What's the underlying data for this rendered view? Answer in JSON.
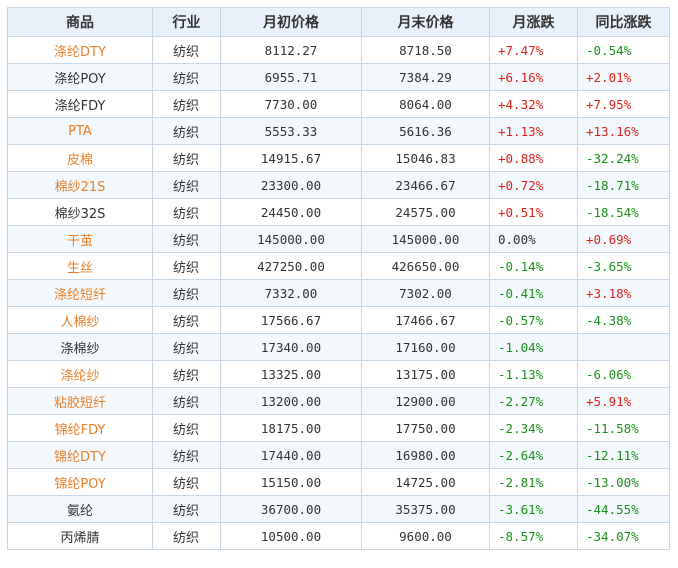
{
  "headers": [
    "商品",
    "行业",
    "月初价格",
    "月末价格",
    "月涨跌",
    "同比涨跌"
  ],
  "colors": {
    "link": "#e87f2a",
    "up": "#e0201b",
    "down": "#1d8f1d"
  },
  "rows": [
    {
      "name": "涤纶DTY",
      "link": true,
      "industry": "纺织",
      "start": "8112.27",
      "end": "8718.50",
      "mom": "+7.47%",
      "mom_dir": "up",
      "yoy": "-0.54%",
      "yoy_dir": "down"
    },
    {
      "name": "涤纶POY",
      "link": false,
      "industry": "纺织",
      "start": "6955.71",
      "end": "7384.29",
      "mom": "+6.16%",
      "mom_dir": "up",
      "yoy": "+2.01%",
      "yoy_dir": "up"
    },
    {
      "name": "涤纶FDY",
      "link": false,
      "industry": "纺织",
      "start": "7730.00",
      "end": "8064.00",
      "mom": "+4.32%",
      "mom_dir": "up",
      "yoy": "+7.95%",
      "yoy_dir": "up"
    },
    {
      "name": "PTA",
      "link": true,
      "industry": "纺织",
      "start": "5553.33",
      "end": "5616.36",
      "mom": "+1.13%",
      "mom_dir": "up",
      "yoy": "+13.16%",
      "yoy_dir": "up"
    },
    {
      "name": "皮棉",
      "link": true,
      "industry": "纺织",
      "start": "14915.67",
      "end": "15046.83",
      "mom": "+0.88%",
      "mom_dir": "up",
      "yoy": "-32.24%",
      "yoy_dir": "down"
    },
    {
      "name": "棉纱21S",
      "link": true,
      "industry": "纺织",
      "start": "23300.00",
      "end": "23466.67",
      "mom": "+0.72%",
      "mom_dir": "up",
      "yoy": "-18.71%",
      "yoy_dir": "down"
    },
    {
      "name": "棉纱32S",
      "link": false,
      "industry": "纺织",
      "start": "24450.00",
      "end": "24575.00",
      "mom": "+0.51%",
      "mom_dir": "up",
      "yoy": "-18.54%",
      "yoy_dir": "down"
    },
    {
      "name": "干茧",
      "link": true,
      "industry": "纺织",
      "start": "145000.00",
      "end": "145000.00",
      "mom": "0.00%",
      "mom_dir": "flat",
      "yoy": "+0.69%",
      "yoy_dir": "up"
    },
    {
      "name": "生丝",
      "link": true,
      "industry": "纺织",
      "start": "427250.00",
      "end": "426650.00",
      "mom": "-0.14%",
      "mom_dir": "down",
      "yoy": "-3.65%",
      "yoy_dir": "down"
    },
    {
      "name": "涤纶短纤",
      "link": true,
      "industry": "纺织",
      "start": "7332.00",
      "end": "7302.00",
      "mom": "-0.41%",
      "mom_dir": "down",
      "yoy": "+3.18%",
      "yoy_dir": "up"
    },
    {
      "name": "人棉纱",
      "link": true,
      "industry": "纺织",
      "start": "17566.67",
      "end": "17466.67",
      "mom": "-0.57%",
      "mom_dir": "down",
      "yoy": "-4.38%",
      "yoy_dir": "down"
    },
    {
      "name": "涤棉纱",
      "link": false,
      "industry": "纺织",
      "start": "17340.00",
      "end": "17160.00",
      "mom": "-1.04%",
      "mom_dir": "down",
      "yoy": "",
      "yoy_dir": "flat"
    },
    {
      "name": "涤纶纱",
      "link": true,
      "industry": "纺织",
      "start": "13325.00",
      "end": "13175.00",
      "mom": "-1.13%",
      "mom_dir": "down",
      "yoy": "-6.06%",
      "yoy_dir": "down"
    },
    {
      "name": "粘胶短纤",
      "link": true,
      "industry": "纺织",
      "start": "13200.00",
      "end": "12900.00",
      "mom": "-2.27%",
      "mom_dir": "down",
      "yoy": "+5.91%",
      "yoy_dir": "up"
    },
    {
      "name": "锦纶FDY",
      "link": true,
      "industry": "纺织",
      "start": "18175.00",
      "end": "17750.00",
      "mom": "-2.34%",
      "mom_dir": "down",
      "yoy": "-11.58%",
      "yoy_dir": "down"
    },
    {
      "name": "锦纶DTY",
      "link": true,
      "industry": "纺织",
      "start": "17440.00",
      "end": "16980.00",
      "mom": "-2.64%",
      "mom_dir": "down",
      "yoy": "-12.11%",
      "yoy_dir": "down"
    },
    {
      "name": "锦纶POY",
      "link": true,
      "industry": "纺织",
      "start": "15150.00",
      "end": "14725.00",
      "mom": "-2.81%",
      "mom_dir": "down",
      "yoy": "-13.00%",
      "yoy_dir": "down"
    },
    {
      "name": "氨纶",
      "link": false,
      "industry": "纺织",
      "start": "36700.00",
      "end": "35375.00",
      "mom": "-3.61%",
      "mom_dir": "down",
      "yoy": "-44.55%",
      "yoy_dir": "down"
    },
    {
      "name": "丙烯腈",
      "link": false,
      "industry": "纺织",
      "start": "10500.00",
      "end": "9600.00",
      "mom": "-8.57%",
      "mom_dir": "down",
      "yoy": "-34.07%",
      "yoy_dir": "down"
    }
  ]
}
